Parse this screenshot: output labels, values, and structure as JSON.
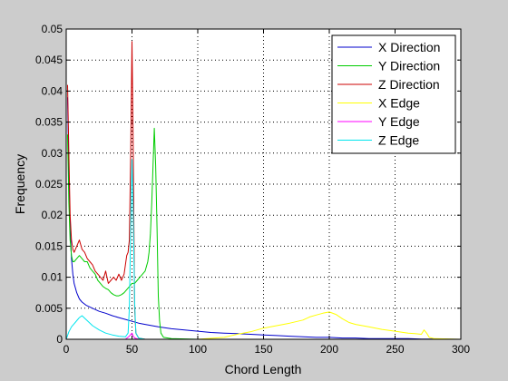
{
  "chart_data": {
    "type": "line",
    "title": "",
    "xlabel": "Chord Length",
    "ylabel": "Frequency",
    "xlim": [
      0,
      300
    ],
    "ylim": [
      0,
      0.05
    ],
    "xticks": [
      0,
      50,
      100,
      150,
      200,
      250,
      300
    ],
    "xtick_labels": [
      "0",
      "50",
      "100",
      "150",
      "200",
      "250",
      "300"
    ],
    "yticks": [
      0,
      0.005,
      0.01,
      0.015,
      0.02,
      0.025,
      0.03,
      0.035,
      0.04,
      0.045,
      0.05
    ],
    "ytick_labels": [
      "0",
      "0.005",
      "0.01",
      "0.015",
      "0.02",
      "0.025",
      "0.03",
      "0.035",
      "0.04",
      "0.045",
      "0.05"
    ],
    "grid": true,
    "legend_position": "top-right",
    "series": [
      {
        "name": "X Direction",
        "color": "#0000cc",
        "x": [
          1,
          2,
          3,
          4,
          5,
          6,
          8,
          10,
          12,
          15,
          20,
          25,
          30,
          35,
          40,
          45,
          50,
          55,
          60,
          70,
          80,
          90,
          100,
          110,
          120,
          130,
          140,
          150,
          160,
          170,
          180,
          190,
          200,
          210,
          220,
          230,
          240,
          250,
          260,
          270,
          280,
          290,
          300
        ],
        "y": [
          0.039,
          0.027,
          0.018,
          0.013,
          0.0105,
          0.009,
          0.0075,
          0.0065,
          0.006,
          0.0055,
          0.005,
          0.0045,
          0.0042,
          0.0038,
          0.0035,
          0.0032,
          0.0029,
          0.0026,
          0.0024,
          0.002,
          0.0017,
          0.0015,
          0.0013,
          0.0011,
          0.001,
          0.0009,
          0.0008,
          0.0007,
          0.0006,
          0.0005,
          0.0004,
          0.0003,
          0.0003,
          0.0002,
          0.0002,
          0.0001,
          0.0001,
          0.0001,
          0.0001,
          5e-05,
          5e-05,
          2e-05,
          0.0
        ]
      },
      {
        "name": "Y Direction",
        "color": "#00cc00",
        "x": [
          1,
          2,
          3,
          4,
          5,
          6,
          8,
          10,
          12,
          14,
          16,
          18,
          20,
          22,
          24,
          26,
          28,
          30,
          32,
          34,
          36,
          38,
          40,
          42,
          44,
          46,
          48,
          50,
          52,
          54,
          56,
          58,
          60,
          62,
          63,
          64,
          65,
          66,
          67,
          68,
          69,
          70,
          71,
          72,
          74,
          80,
          100,
          300
        ],
        "y": [
          0.033,
          0.022,
          0.016,
          0.0135,
          0.0125,
          0.0125,
          0.013,
          0.0135,
          0.013,
          0.0125,
          0.0125,
          0.0115,
          0.011,
          0.0105,
          0.0095,
          0.009,
          0.0085,
          0.0082,
          0.008,
          0.0075,
          0.0072,
          0.007,
          0.007,
          0.0072,
          0.0075,
          0.008,
          0.0085,
          0.009,
          0.009,
          0.0095,
          0.01,
          0.0105,
          0.011,
          0.0125,
          0.014,
          0.017,
          0.022,
          0.028,
          0.034,
          0.028,
          0.018,
          0.007,
          0.003,
          0.001,
          0.0003,
          0.0001,
          0.0,
          0.0
        ]
      },
      {
        "name": "Z Direction",
        "color": "#cc0000",
        "x": [
          1,
          2,
          3,
          4,
          5,
          6,
          8,
          10,
          12,
          14,
          16,
          18,
          20,
          22,
          24,
          26,
          28,
          30,
          32,
          34,
          36,
          38,
          40,
          42,
          44,
          46,
          47,
          48,
          49,
          50,
          51,
          52,
          53,
          55,
          60,
          300
        ],
        "y": [
          0.041,
          0.03,
          0.02,
          0.016,
          0.0145,
          0.014,
          0.015,
          0.016,
          0.0145,
          0.014,
          0.013,
          0.0125,
          0.012,
          0.011,
          0.0105,
          0.01,
          0.0095,
          0.011,
          0.009,
          0.0095,
          0.01,
          0.0095,
          0.0105,
          0.0095,
          0.0105,
          0.0135,
          0.014,
          0.016,
          0.03,
          0.048,
          0.03,
          0.005,
          0.001,
          0.0002,
          0.0,
          0.0
        ]
      },
      {
        "name": "X Edge",
        "color": "#ffff00",
        "x": [
          0,
          100,
          120,
          130,
          140,
          150,
          160,
          170,
          180,
          185,
          190,
          195,
          200,
          205,
          210,
          215,
          220,
          230,
          240,
          250,
          260,
          265,
          270,
          272,
          274,
          276,
          280,
          300
        ],
        "y": [
          0.0,
          0.0,
          0.0003,
          0.0008,
          0.0012,
          0.0018,
          0.0022,
          0.0026,
          0.0031,
          0.0036,
          0.0039,
          0.0042,
          0.0044,
          0.004,
          0.0033,
          0.0027,
          0.0024,
          0.002,
          0.0016,
          0.0013,
          0.001,
          0.0009,
          0.0008,
          0.0015,
          0.001,
          0.0003,
          0.0001,
          0.0
        ]
      },
      {
        "name": "Y Edge",
        "color": "#ff00ff",
        "x": [
          0,
          45,
          48,
          50,
          51,
          52,
          55,
          300
        ],
        "y": [
          0.0,
          0.0,
          0.0005,
          0.001,
          0.0005,
          0.0002,
          0.0,
          0.0
        ]
      },
      {
        "name": "Z Edge",
        "color": "#00e5ee",
        "x": [
          0,
          2,
          4,
          6,
          8,
          10,
          12,
          14,
          16,
          18,
          20,
          25,
          30,
          35,
          40,
          45,
          47,
          48,
          49,
          50,
          51,
          52,
          53,
          55,
          60,
          300
        ],
        "y": [
          0.0,
          0.0012,
          0.002,
          0.0025,
          0.003,
          0.0035,
          0.0038,
          0.0034,
          0.003,
          0.0026,
          0.0022,
          0.0015,
          0.001,
          0.0007,
          0.0005,
          0.0004,
          0.001,
          0.005,
          0.018,
          0.029,
          0.02,
          0.006,
          0.001,
          0.0002,
          0.0,
          0.0
        ]
      }
    ]
  }
}
